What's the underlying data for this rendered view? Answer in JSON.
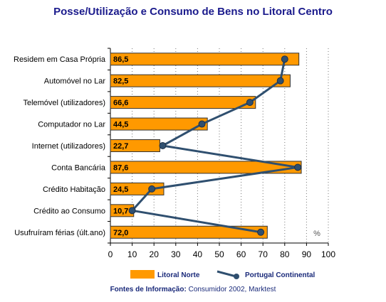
{
  "chart_data": {
    "type": "bar",
    "title": "Posse/Utilização e Consumo de Bens no Litoral Centro",
    "orientation": "horizontal",
    "categories": [
      "Residem em Casa Própria",
      "Automóvel no Lar",
      "Telemóvel (utilizadores)",
      "Computador no Lar",
      "Internet (utilizadores)",
      "Conta Bancária",
      "Crédito Habitação",
      "Crédito ao Consumo",
      "Usufruíram férias (últ.ano)"
    ],
    "value_labels": [
      "86,5",
      "82,5",
      "66,6",
      "44,5",
      "22,7",
      "87,6",
      "24,5",
      "10,7",
      "72,0"
    ],
    "series": [
      {
        "name": "Litoral Norte",
        "type": "bar",
        "color": "#ff9900",
        "values": [
          86.5,
          82.5,
          66.6,
          44.5,
          22.7,
          87.6,
          24.5,
          10.7,
          72.0
        ]
      },
      {
        "name": "Portugal Continental",
        "type": "line",
        "color": "#2f4f6f",
        "values": [
          80,
          78,
          64,
          42,
          24,
          86,
          19,
          10,
          69
        ]
      }
    ],
    "xlim": [
      0,
      100
    ],
    "xticks": [
      "0",
      "10",
      "20",
      "30",
      "40",
      "50",
      "60",
      "70",
      "80",
      "90",
      "100"
    ],
    "unit_label": "%",
    "grid": "vertical dotted",
    "legend_position": "bottom"
  },
  "source": {
    "label": "Fontes de Informação:",
    "text": " Consumidor 2002, Marktest"
  }
}
